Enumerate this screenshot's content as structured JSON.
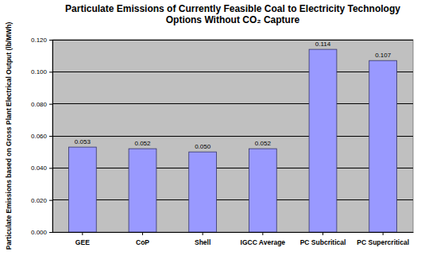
{
  "chart_data": {
    "type": "bar",
    "title": "Particulate Emissions of Currently Feasible Coal to Electricity Technology Options Without CO₂ Capture",
    "y_label": "Particulate Emissions based on Gross Plant Electrical Output (lb/MWh)",
    "categories": [
      "GEE",
      "CoP",
      "Shell",
      "IGCC Average",
      "PC Subcritical",
      "PC Supercritical"
    ],
    "values": [
      0.053,
      0.052,
      0.05,
      0.052,
      0.114,
      0.107
    ],
    "value_labels": [
      "0.053",
      "0.052",
      "0.050",
      "0.052",
      "0.114",
      "0.107"
    ],
    "color": "#9999FF",
    "ylim": [
      0,
      0.12
    ],
    "yticks": [
      {
        "value": 0,
        "label": "0.000"
      },
      {
        "value": 0.02,
        "label": "0.020"
      },
      {
        "value": 0.04,
        "label": "0.040"
      },
      {
        "value": 0.06,
        "label": "0.060"
      },
      {
        "value": 0.08,
        "label": "0.080"
      },
      {
        "value": 0.1,
        "label": "0.100"
      },
      {
        "value": 0.12,
        "label": "0.120"
      }
    ],
    "grid": true,
    "data_labels": true
  }
}
